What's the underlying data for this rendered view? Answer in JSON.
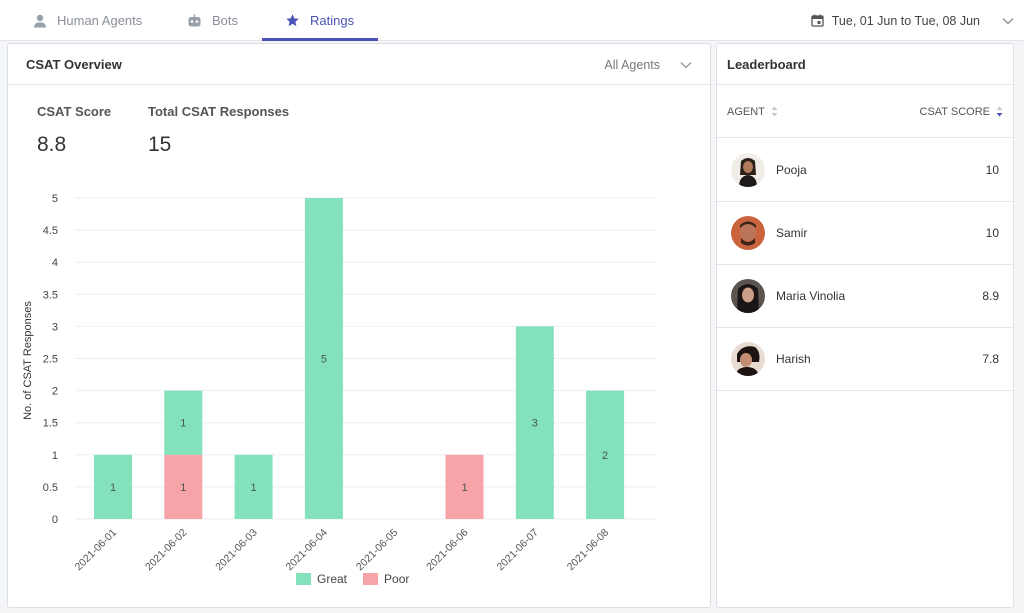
{
  "nav": {
    "tabs": [
      {
        "label": "Human Agents",
        "icon": "person-icon"
      },
      {
        "label": "Bots",
        "icon": "bot-icon"
      },
      {
        "label": "Ratings",
        "icon": "star-icon",
        "active": true
      }
    ],
    "date_range": "Tue, 01 Jun to Tue, 08 Jun"
  },
  "csat": {
    "title": "CSAT Overview",
    "agent_filter": "All Agents",
    "score_label": "CSAT Score",
    "score_value": "8.8",
    "responses_label": "Total CSAT Responses",
    "responses_value": "15"
  },
  "colors": {
    "great": "#83e2bb",
    "poor": "#f7a4a8",
    "accent": "#4a53b5"
  },
  "chart_data": {
    "type": "bar",
    "stacked": true,
    "categories": [
      "2021-06-01",
      "2021-06-02",
      "2021-06-03",
      "2021-06-04",
      "2021-06-05",
      "2021-06-06",
      "2021-06-07",
      "2021-06-08"
    ],
    "series": [
      {
        "name": "Poor",
        "values": [
          0,
          1,
          0,
          0,
          0,
          1,
          0,
          0
        ]
      },
      {
        "name": "Great",
        "values": [
          1,
          1,
          1,
          5,
          0,
          0,
          3,
          2
        ]
      }
    ],
    "ylabel": "No. of CSAT Responses",
    "ylim": [
      0,
      5
    ],
    "yticks": [
      "0",
      "0.5",
      "1",
      "1.5",
      "2",
      "2.5",
      "3",
      "3.5",
      "4",
      "4.5",
      "5"
    ],
    "grid": true,
    "legend_position": "bottom"
  },
  "leaderboard": {
    "title": "Leaderboard",
    "col_agent": "AGENT",
    "col_score": "CSAT SCORE",
    "rows": [
      {
        "name": "Pooja",
        "score": "10"
      },
      {
        "name": "Samir",
        "score": "10"
      },
      {
        "name": "Maria Vinolia",
        "score": "8.9"
      },
      {
        "name": "Harish",
        "score": "7.8"
      }
    ]
  }
}
